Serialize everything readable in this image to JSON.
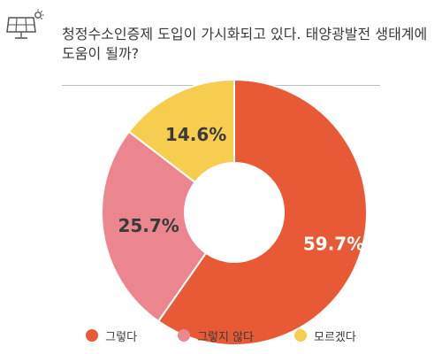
{
  "header": {
    "icon": "solar-panel-icon",
    "title": "청정수소인증제 도입이 가시화되고 있다. 태양광발전 생태계에 도움이 될까?"
  },
  "chart_data": {
    "type": "pie",
    "title": "청정수소인증제 도입이 가시화되고 있다. 태양광발전 생태계에 도움이 될까?",
    "categories": [
      "그렇다",
      "그렇지 않다",
      "모르겠다"
    ],
    "values": [
      59.7,
      25.7,
      14.6
    ],
    "labels": [
      "59.7%",
      "25.7%",
      "14.6%"
    ],
    "colors": [
      "#e85a35",
      "#ec868e",
      "#f7cd4f"
    ],
    "donut": true,
    "legend_position": "bottom"
  },
  "legend": {
    "items": [
      {
        "label": "그렇다",
        "color": "#e85a35"
      },
      {
        "label": "그렇지 않다",
        "color": "#ec868e"
      },
      {
        "label": "모르겠다",
        "color": "#f7cd4f"
      }
    ]
  }
}
